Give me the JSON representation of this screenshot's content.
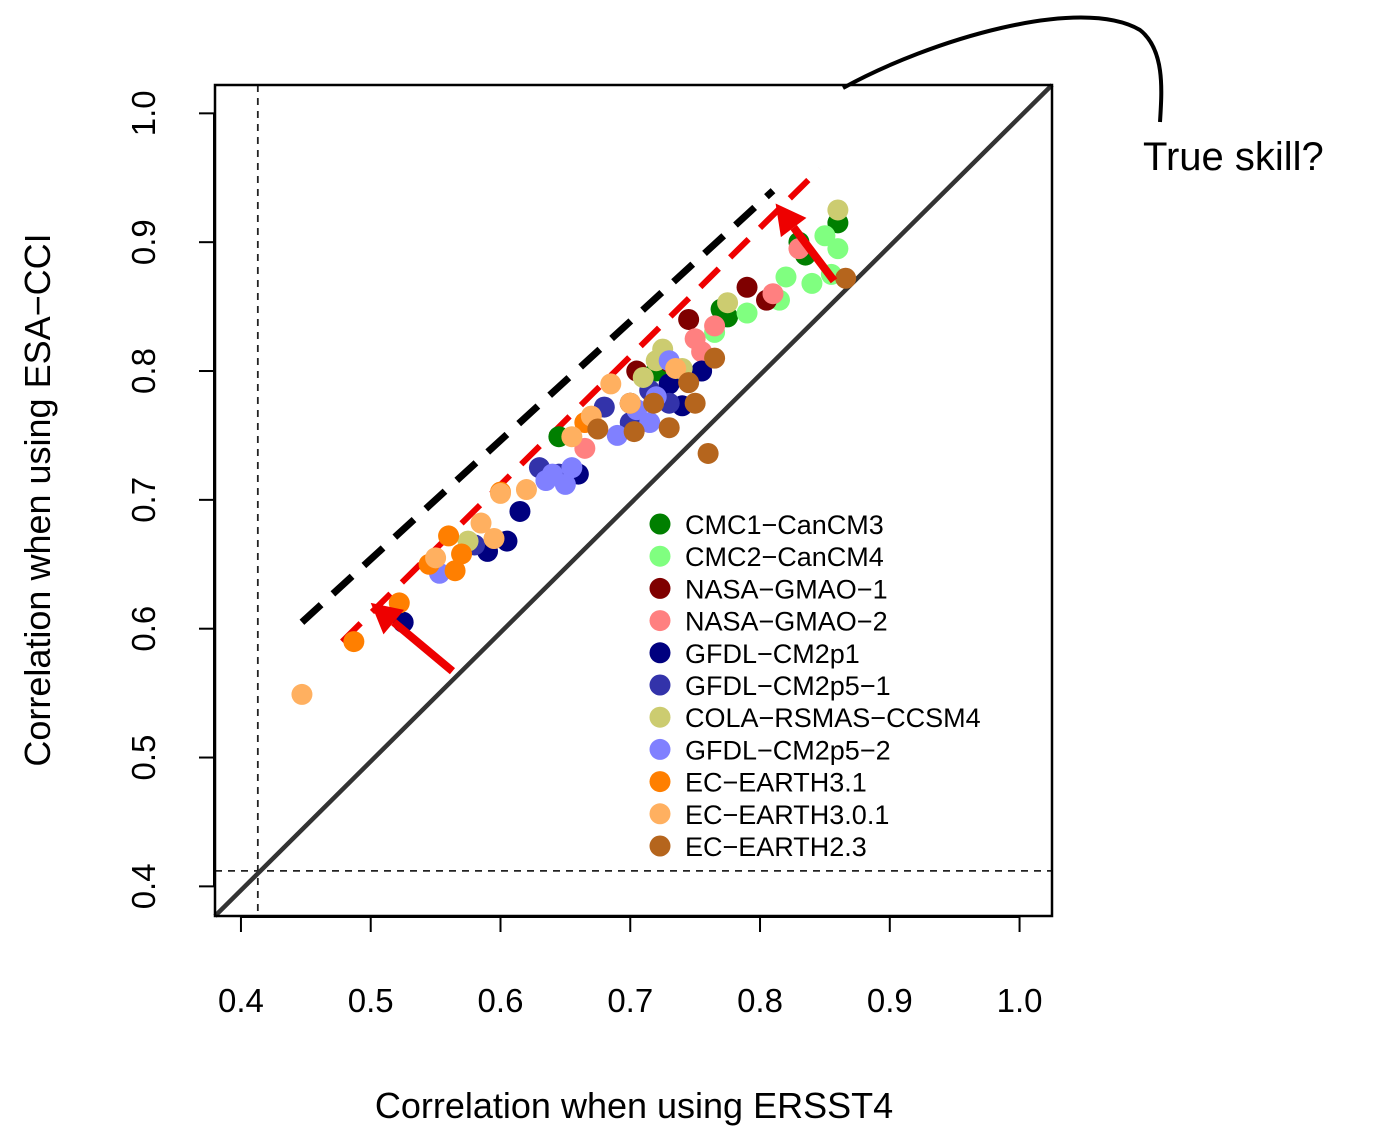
{
  "chart_data": {
    "type": "scatter",
    "title": "",
    "xlabel": "Correlation when using ERSST4",
    "ylabel": "Correlation when using ESA−CCI",
    "xlim": [
      0.38,
      1.025
    ],
    "ylim": [
      0.377,
      1.022
    ],
    "xticks": [
      0.4,
      0.5,
      0.6,
      0.7,
      0.8,
      0.9,
      1.0
    ],
    "yticks": [
      0.4,
      0.5,
      0.6,
      0.7,
      0.8,
      0.9,
      1.0
    ],
    "xtick_labels": [
      "0.4",
      "0.5",
      "0.6",
      "0.7",
      "0.8",
      "0.9",
      "1.0"
    ],
    "ytick_labels": [
      "0.4",
      "0.5",
      "0.6",
      "0.7",
      "0.8",
      "0.9",
      "1.0"
    ],
    "grid": false,
    "legend_position": "lower-right",
    "reference_lines": {
      "diagonal": {
        "from": [
          0.38,
          0.377
        ],
        "to": [
          1.025,
          1.022
        ],
        "color": "#333333"
      },
      "vertical_dashed_x": 0.413,
      "horizontal_dashed_y": 0.412,
      "black_dashed": {
        "from": [
          0.447,
          0.605
        ],
        "to": [
          0.81,
          0.94
        ],
        "color": "#000000"
      },
      "red_dashed": {
        "from": [
          0.478,
          0.59
        ],
        "to": [
          0.846,
          0.957
        ],
        "color": "#ee0000"
      }
    },
    "arrows": [
      {
        "from": [
          0.563,
          0.567
        ],
        "to": [
          0.5,
          0.62
        ],
        "color": "#ee0000"
      },
      {
        "from": [
          0.857,
          0.87
        ],
        "to": [
          0.812,
          0.93
        ],
        "color": "#ee0000"
      }
    ],
    "annotation": {
      "text": "True skill?"
    },
    "series": [
      {
        "name": "CMC1−CanCM3",
        "color": "#007f00",
        "x": [
          0.645,
          0.72,
          0.77,
          0.775,
          0.83,
          0.86,
          0.835
        ],
        "y": [
          0.749,
          0.8,
          0.848,
          0.842,
          0.9,
          0.915,
          0.89
        ]
      },
      {
        "name": "CMC2−CanCM4",
        "color": "#80ff80",
        "x": [
          0.74,
          0.765,
          0.79,
          0.815,
          0.82,
          0.84,
          0.85,
          0.86,
          0.855
        ],
        "y": [
          0.799,
          0.83,
          0.845,
          0.855,
          0.873,
          0.868,
          0.905,
          0.895,
          0.875
        ]
      },
      {
        "name": "NASA−GMAO−1",
        "color": "#7f0000",
        "x": [
          0.705,
          0.73,
          0.745,
          0.79,
          0.805
        ],
        "y": [
          0.8,
          0.807,
          0.84,
          0.865,
          0.855
        ]
      },
      {
        "name": "NASA−GMAO−2",
        "color": "#ff8080",
        "x": [
          0.665,
          0.725,
          0.75,
          0.755,
          0.765,
          0.81,
          0.83
        ],
        "y": [
          0.74,
          0.78,
          0.825,
          0.815,
          0.835,
          0.86,
          0.895
        ]
      },
      {
        "name": "GFDL−CM2p1",
        "color": "#00007f",
        "x": [
          0.525,
          0.59,
          0.605,
          0.615,
          0.66,
          0.74,
          0.755,
          0.7,
          0.73
        ],
        "y": [
          0.605,
          0.66,
          0.668,
          0.691,
          0.72,
          0.773,
          0.8,
          0.775,
          0.79
        ]
      },
      {
        "name": "GFDL−CM2p5−1",
        "color": "#3333aa",
        "x": [
          0.58,
          0.63,
          0.645,
          0.68,
          0.7,
          0.715,
          0.73
        ],
        "y": [
          0.665,
          0.725,
          0.72,
          0.772,
          0.76,
          0.785,
          0.775
        ]
      },
      {
        "name": "COLA−RSMAS−CCSM4",
        "color": "#cccc70",
        "x": [
          0.575,
          0.71,
          0.72,
          0.725,
          0.74,
          0.775,
          0.86
        ],
        "y": [
          0.668,
          0.795,
          0.808,
          0.817,
          0.802,
          0.853,
          0.925
        ]
      },
      {
        "name": "GFDL−CM2p5−2",
        "color": "#8080ff",
        "x": [
          0.553,
          0.635,
          0.64,
          0.65,
          0.655,
          0.69,
          0.72,
          0.73,
          0.705,
          0.715
        ],
        "y": [
          0.643,
          0.715,
          0.72,
          0.712,
          0.725,
          0.75,
          0.78,
          0.808,
          0.77,
          0.76
        ]
      },
      {
        "name": "EC−EARTH3.1",
        "color": "#ff7f00",
        "x": [
          0.487,
          0.522,
          0.545,
          0.56,
          0.565,
          0.57,
          0.6,
          0.665,
          0.7
        ],
        "y": [
          0.59,
          0.62,
          0.65,
          0.672,
          0.645,
          0.658,
          0.706,
          0.76,
          0.775
        ]
      },
      {
        "name": "EC−EARTH3.0.1",
        "color": "#ffb060",
        "x": [
          0.447,
          0.55,
          0.585,
          0.595,
          0.6,
          0.62,
          0.655,
          0.67,
          0.685,
          0.7,
          0.735
        ],
        "y": [
          0.549,
          0.655,
          0.682,
          0.67,
          0.705,
          0.708,
          0.749,
          0.765,
          0.79,
          0.775,
          0.802
        ]
      },
      {
        "name": "EC−EARTH2.3",
        "color": "#b5651d",
        "x": [
          0.675,
          0.703,
          0.718,
          0.73,
          0.745,
          0.75,
          0.76,
          0.765,
          0.866
        ],
        "y": [
          0.755,
          0.753,
          0.775,
          0.756,
          0.791,
          0.775,
          0.736,
          0.81,
          0.872
        ]
      }
    ]
  }
}
